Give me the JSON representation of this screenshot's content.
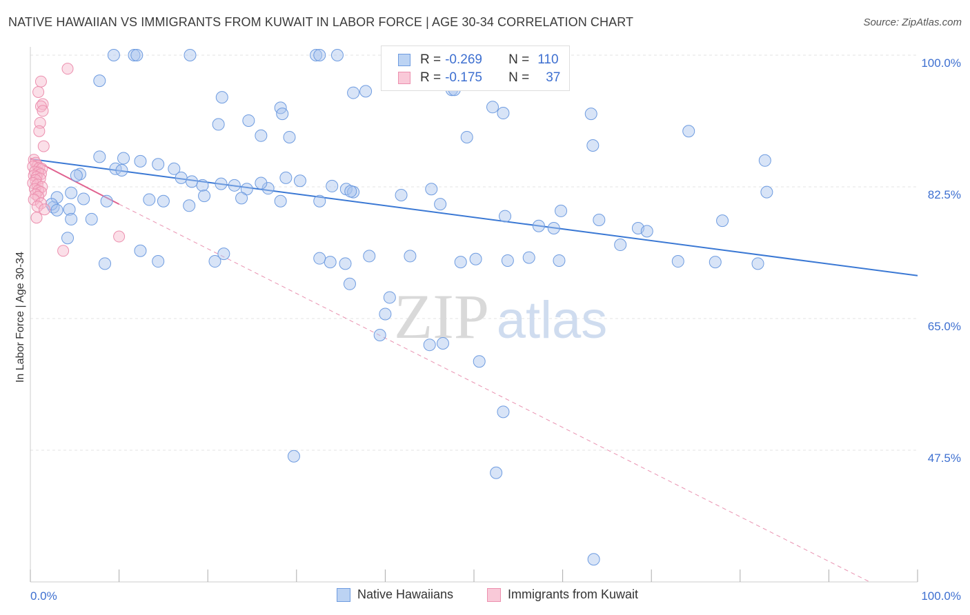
{
  "header": {
    "title": "NATIVE HAWAIIAN VS IMMIGRANTS FROM KUWAIT IN LABOR FORCE | AGE 30-34 CORRELATION CHART",
    "source": "Source: ZipAtlas.com"
  },
  "watermark": {
    "zip": "ZIP",
    "atlas": "atlas"
  },
  "legend": {
    "rows": [
      {
        "r_label": "R =",
        "r_value": "-0.269",
        "n_label": "N =",
        "n_value": "110"
      },
      {
        "r_label": "R =",
        "r_value": "-0.175",
        "n_label": "N =",
        "n_value": "37"
      }
    ]
  },
  "colors": {
    "blue_fill": "#a9c4ee",
    "blue_stroke": "#6d9be0",
    "blue_line": "#3a78d4",
    "pink_fill": "#f6b8cb",
    "pink_stroke": "#ec8fae",
    "pink_line": "#e0628f",
    "tick_label": "#3d6fd0",
    "grid": "#e3e3e3"
  },
  "chart_data": {
    "type": "scatter",
    "xlabel": "",
    "ylabel": "In Labor Force | Age 30-34",
    "xlim": [
      0,
      100
    ],
    "ylim": [
      30,
      100
    ],
    "x_tick_labels": [
      "0.0%",
      "100.0%"
    ],
    "y_ticks": [
      47.5,
      65.0,
      82.5,
      100.0
    ],
    "y_tick_labels": [
      "47.5%",
      "65.0%",
      "82.5%",
      "100.0%"
    ],
    "grid": true,
    "series": [
      {
        "name": "Native Hawaiians",
        "r": -0.269,
        "n": 110,
        "trend": {
          "x": [
            0,
            100
          ],
          "y": [
            86.2,
            70.7
          ]
        },
        "points": [
          [
            9.4,
            100
          ],
          [
            11.7,
            100
          ],
          [
            12.0,
            100
          ],
          [
            18.0,
            100
          ],
          [
            32.2,
            100
          ],
          [
            32.6,
            100
          ],
          [
            34.6,
            100
          ],
          [
            60.0,
            100
          ],
          [
            7.8,
            96.6
          ],
          [
            47.5,
            95.4
          ],
          [
            37.8,
            95.2
          ],
          [
            36.4,
            95.0
          ],
          [
            47.8,
            95.4
          ],
          [
            21.6,
            94.4
          ],
          [
            28.2,
            93.0
          ],
          [
            28.4,
            92.2
          ],
          [
            53.3,
            92.3
          ],
          [
            63.2,
            92.2
          ],
          [
            52.1,
            93.1
          ],
          [
            24.6,
            91.3
          ],
          [
            21.2,
            90.8
          ],
          [
            26.0,
            89.3
          ],
          [
            29.2,
            89.1
          ],
          [
            49.2,
            89.1
          ],
          [
            63.4,
            88.0
          ],
          [
            7.8,
            86.5
          ],
          [
            10.5,
            86.3
          ],
          [
            12.4,
            85.9
          ],
          [
            14.4,
            85.5
          ],
          [
            16.2,
            84.9
          ],
          [
            9.6,
            84.9
          ],
          [
            10.3,
            84.7
          ],
          [
            74.2,
            89.9
          ],
          [
            82.8,
            86.0
          ],
          [
            5.6,
            84.2
          ],
          [
            5.2,
            84.0
          ],
          [
            17.0,
            83.7
          ],
          [
            18.2,
            83.2
          ],
          [
            19.4,
            82.7
          ],
          [
            21.5,
            82.9
          ],
          [
            23.0,
            82.7
          ],
          [
            26.8,
            82.3
          ],
          [
            30.4,
            83.3
          ],
          [
            26.0,
            83.0
          ],
          [
            24.4,
            82.2
          ],
          [
            19.6,
            81.3
          ],
          [
            23.8,
            81.0
          ],
          [
            28.8,
            83.7
          ],
          [
            34.0,
            82.6
          ],
          [
            35.6,
            82.2
          ],
          [
            36.4,
            81.8
          ],
          [
            46.2,
            80.2
          ],
          [
            45.2,
            82.2
          ],
          [
            4.6,
            81.7
          ],
          [
            6.0,
            80.9
          ],
          [
            8.6,
            80.6
          ],
          [
            13.4,
            80.8
          ],
          [
            15.0,
            80.6
          ],
          [
            17.9,
            80.0
          ],
          [
            28.2,
            80.6
          ],
          [
            32.6,
            80.6
          ],
          [
            36.1,
            81.9
          ],
          [
            41.8,
            81.4
          ],
          [
            2.6,
            79.8
          ],
          [
            3.0,
            81.1
          ],
          [
            4.4,
            79.5
          ],
          [
            6.9,
            78.2
          ],
          [
            2.4,
            80.2
          ],
          [
            4.6,
            78.2
          ],
          [
            3.0,
            79.4
          ],
          [
            53.5,
            78.6
          ],
          [
            59.8,
            79.3
          ],
          [
            64.1,
            78.1
          ],
          [
            78.0,
            78.0
          ],
          [
            83.0,
            81.8
          ],
          [
            57.3,
            77.3
          ],
          [
            59.0,
            77.0
          ],
          [
            66.5,
            74.8
          ],
          [
            68.5,
            77.0
          ],
          [
            69.5,
            76.6
          ],
          [
            4.2,
            75.7
          ],
          [
            12.4,
            74.0
          ],
          [
            8.4,
            72.3
          ],
          [
            14.4,
            72.6
          ],
          [
            20.8,
            72.6
          ],
          [
            21.8,
            73.6
          ],
          [
            38.2,
            73.3
          ],
          [
            33.8,
            72.5
          ],
          [
            32.6,
            73.0
          ],
          [
            42.8,
            73.3
          ],
          [
            48.5,
            72.5
          ],
          [
            50.2,
            72.9
          ],
          [
            53.8,
            72.7
          ],
          [
            56.2,
            73.1
          ],
          [
            73.0,
            72.6
          ],
          [
            59.6,
            72.7
          ],
          [
            77.2,
            72.5
          ],
          [
            82.0,
            72.3
          ],
          [
            35.5,
            72.3
          ],
          [
            36.0,
            69.6
          ],
          [
            40.5,
            67.8
          ],
          [
            40.0,
            65.6
          ],
          [
            39.4,
            62.8
          ],
          [
            45.0,
            61.5
          ],
          [
            46.5,
            61.7
          ],
          [
            50.6,
            59.3
          ],
          [
            53.3,
            52.6
          ],
          [
            29.7,
            46.7
          ],
          [
            52.5,
            44.5
          ],
          [
            63.5,
            33.0
          ]
        ]
      },
      {
        "name": "Immigrants from Kuwait",
        "r": -0.175,
        "n": 37,
        "trend": {
          "x": [
            0,
            10
          ],
          "y": [
            86.3,
            80.2
          ]
        },
        "trend_extended": {
          "x": [
            10,
            94.6
          ],
          "y": [
            80.2,
            30.0
          ]
        },
        "points": [
          [
            4.2,
            98.2
          ],
          [
            1.2,
            96.5
          ],
          [
            0.9,
            95.1
          ],
          [
            1.4,
            93.5
          ],
          [
            1.2,
            93.2
          ],
          [
            1.4,
            92.6
          ],
          [
            1.1,
            91.0
          ],
          [
            1.0,
            89.9
          ],
          [
            1.5,
            87.9
          ],
          [
            0.4,
            86.1
          ],
          [
            0.6,
            85.7
          ],
          [
            0.8,
            85.3
          ],
          [
            0.3,
            85.2
          ],
          [
            1.0,
            85.0
          ],
          [
            1.3,
            84.9
          ],
          [
            0.5,
            84.5
          ],
          [
            0.9,
            84.4
          ],
          [
            1.2,
            84.2
          ],
          [
            0.4,
            84.0
          ],
          [
            0.7,
            83.8
          ],
          [
            1.1,
            83.6
          ],
          [
            0.6,
            83.4
          ],
          [
            0.3,
            83.0
          ],
          [
            0.8,
            82.8
          ],
          [
            1.3,
            82.5
          ],
          [
            0.5,
            82.2
          ],
          [
            0.9,
            82.0
          ],
          [
            1.2,
            81.8
          ],
          [
            0.6,
            81.5
          ],
          [
            0.9,
            81.2
          ],
          [
            0.4,
            80.8
          ],
          [
            1.2,
            80.3
          ],
          [
            0.8,
            79.9
          ],
          [
            1.6,
            79.5
          ],
          [
            0.7,
            78.4
          ],
          [
            10.0,
            75.9
          ],
          [
            3.7,
            74.0
          ]
        ]
      }
    ]
  },
  "bottom_legend": [
    "Native Hawaiians",
    "Immigrants from Kuwait"
  ]
}
